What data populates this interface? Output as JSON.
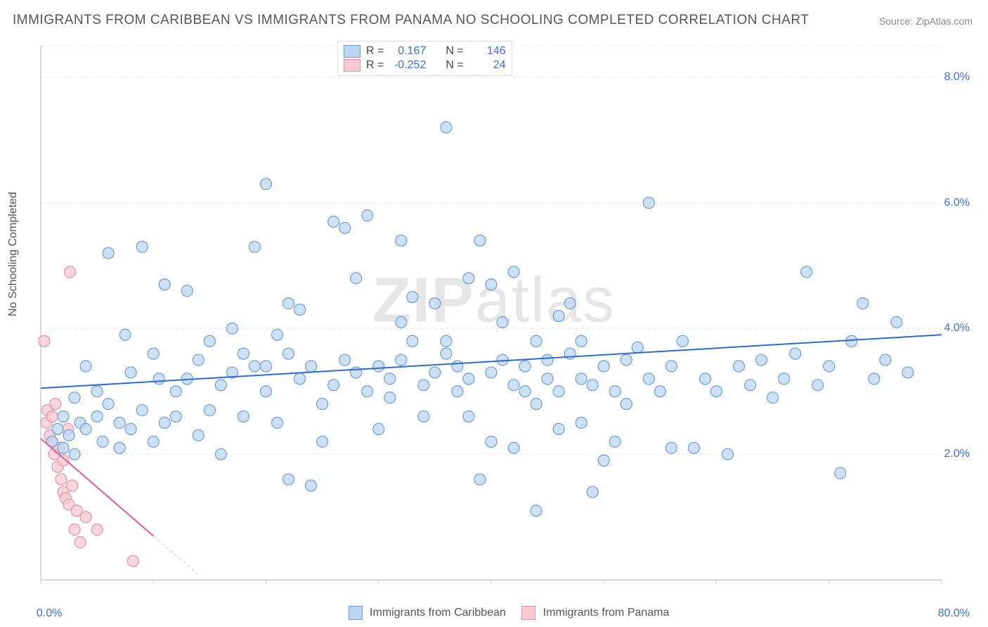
{
  "title": "IMMIGRANTS FROM CARIBBEAN VS IMMIGRANTS FROM PANAMA NO SCHOOLING COMPLETED CORRELATION CHART",
  "source": "Source: ZipAtlas.com",
  "watermark": "ZIPatlas",
  "y_axis_label": "No Schooling Completed",
  "chart": {
    "type": "scatter",
    "xlim": [
      0,
      80
    ],
    "ylim": [
      0,
      8.5
    ],
    "x_ticks": [
      0,
      10,
      20,
      30,
      40,
      50,
      60,
      70,
      80
    ],
    "y_ticks": [
      2,
      4,
      6,
      8
    ],
    "y_tick_labels": [
      "2.0%",
      "4.0%",
      "6.0%",
      "8.0%"
    ],
    "x_min_label": "0.0%",
    "x_max_label": "80.0%",
    "background_color": "#ffffff",
    "grid_color": "#e6e6e6",
    "axis_color": "#cccccc",
    "tick_label_color": "#3a6fd8",
    "marker_radius": 8,
    "marker_stroke_width": 1.2,
    "series": [
      {
        "name": "Immigrants from Caribbean",
        "legend_label": "Immigrants from Caribbean",
        "fill": "#bcd5f0",
        "stroke": "#6a9fd4",
        "fill_opacity": 0.75,
        "R": "0.167",
        "N": "146",
        "trend": {
          "x1": 0,
          "y1": 3.05,
          "x2": 80,
          "y2": 3.9,
          "color": "#2b6cd4",
          "width": 2
        },
        "points": [
          [
            1,
            2.2
          ],
          [
            1.5,
            2.4
          ],
          [
            2,
            2.1
          ],
          [
            2,
            2.6
          ],
          [
            2.5,
            2.3
          ],
          [
            3,
            2.9
          ],
          [
            3,
            2.0
          ],
          [
            3.5,
            2.5
          ],
          [
            4,
            2.4
          ],
          [
            4,
            3.4
          ],
          [
            5,
            2.6
          ],
          [
            5,
            3.0
          ],
          [
            5.5,
            2.2
          ],
          [
            6,
            2.8
          ],
          [
            6,
            5.2
          ],
          [
            7,
            2.5
          ],
          [
            7,
            2.1
          ],
          [
            7.5,
            3.9
          ],
          [
            8,
            3.3
          ],
          [
            8,
            2.4
          ],
          [
            9,
            2.7
          ],
          [
            9,
            5.3
          ],
          [
            10,
            3.6
          ],
          [
            10,
            2.2
          ],
          [
            10.5,
            3.2
          ],
          [
            11,
            2.5
          ],
          [
            11,
            4.7
          ],
          [
            12,
            3.0
          ],
          [
            12,
            2.6
          ],
          [
            13,
            3.2
          ],
          [
            13,
            4.6
          ],
          [
            14,
            2.3
          ],
          [
            14,
            3.5
          ],
          [
            15,
            3.8
          ],
          [
            15,
            2.7
          ],
          [
            16,
            3.1
          ],
          [
            16,
            2.0
          ],
          [
            17,
            4.0
          ],
          [
            17,
            3.3
          ],
          [
            18,
            2.6
          ],
          [
            18,
            3.6
          ],
          [
            19,
            3.4
          ],
          [
            19,
            5.3
          ],
          [
            20,
            6.3
          ],
          [
            20,
            3.0
          ],
          [
            21,
            2.5
          ],
          [
            21,
            3.9
          ],
          [
            22,
            3.6
          ],
          [
            22,
            1.6
          ],
          [
            23,
            3.2
          ],
          [
            23,
            4.3
          ],
          [
            24,
            1.5
          ],
          [
            24,
            3.4
          ],
          [
            25,
            2.8
          ],
          [
            25,
            2.2
          ],
          [
            26,
            3.1
          ],
          [
            26,
            5.7
          ],
          [
            27,
            3.5
          ],
          [
            27,
            5.6
          ],
          [
            28,
            3.3
          ],
          [
            28,
            4.8
          ],
          [
            29,
            3.0
          ],
          [
            29,
            5.8
          ],
          [
            30,
            3.4
          ],
          [
            30,
            2.4
          ],
          [
            31,
            2.9
          ],
          [
            31,
            3.2
          ],
          [
            32,
            3.5
          ],
          [
            32,
            5.4
          ],
          [
            33,
            3.8
          ],
          [
            33,
            4.5
          ],
          [
            34,
            2.6
          ],
          [
            34,
            3.1
          ],
          [
            35,
            3.3
          ],
          [
            35,
            4.4
          ],
          [
            36,
            3.6
          ],
          [
            36,
            7.2
          ],
          [
            37,
            3.0
          ],
          [
            37,
            3.4
          ],
          [
            38,
            3.2
          ],
          [
            38,
            4.8
          ],
          [
            39,
            5.4
          ],
          [
            39,
            1.6
          ],
          [
            40,
            3.3
          ],
          [
            40,
            2.2
          ],
          [
            41,
            3.5
          ],
          [
            41,
            4.1
          ],
          [
            42,
            3.1
          ],
          [
            42,
            4.9
          ],
          [
            43,
            3.4
          ],
          [
            43,
            3.0
          ],
          [
            44,
            2.8
          ],
          [
            44,
            1.1
          ],
          [
            45,
            3.5
          ],
          [
            45,
            3.2
          ],
          [
            46,
            3.0
          ],
          [
            46,
            2.4
          ],
          [
            47,
            3.6
          ],
          [
            47,
            4.4
          ],
          [
            48,
            3.2
          ],
          [
            48,
            2.5
          ],
          [
            49,
            3.1
          ],
          [
            49,
            1.4
          ],
          [
            50,
            3.4
          ],
          [
            50,
            1.9
          ],
          [
            51,
            3.0
          ],
          [
            51,
            2.2
          ],
          [
            52,
            3.5
          ],
          [
            52,
            2.8
          ],
          [
            53,
            3.7
          ],
          [
            54,
            3.2
          ],
          [
            54,
            6.0
          ],
          [
            55,
            3.0
          ],
          [
            56,
            3.4
          ],
          [
            56,
            2.1
          ],
          [
            57,
            3.8
          ],
          [
            58,
            2.1
          ],
          [
            59,
            3.2
          ],
          [
            60,
            3.0
          ],
          [
            61,
            2.0
          ],
          [
            62,
            3.4
          ],
          [
            63,
            3.1
          ],
          [
            64,
            3.5
          ],
          [
            65,
            2.9
          ],
          [
            66,
            3.2
          ],
          [
            67,
            3.6
          ],
          [
            68,
            4.9
          ],
          [
            69,
            3.1
          ],
          [
            70,
            3.4
          ],
          [
            71,
            1.7
          ],
          [
            72,
            3.8
          ],
          [
            73,
            4.4
          ],
          [
            74,
            3.2
          ],
          [
            75,
            3.5
          ],
          [
            76,
            4.1
          ],
          [
            77,
            3.3
          ],
          [
            32,
            4.1
          ],
          [
            36,
            3.8
          ],
          [
            38,
            2.6
          ],
          [
            40,
            4.7
          ],
          [
            42,
            2.1
          ],
          [
            44,
            3.8
          ],
          [
            46,
            4.2
          ],
          [
            48,
            3.8
          ],
          [
            20,
            3.4
          ],
          [
            22,
            4.4
          ]
        ]
      },
      {
        "name": "Immigrants from Panama",
        "legend_label": "Immigrants from Panama",
        "fill": "#f7c8d2",
        "stroke": "#e78fa6",
        "fill_opacity": 0.75,
        "R": "-0.252",
        "N": "24",
        "trend": {
          "x1": 0,
          "y1": 2.25,
          "x2": 10,
          "y2": 0.7,
          "extend_x": 14,
          "color": "#e35d87",
          "width": 2
        },
        "points": [
          [
            0.3,
            3.8
          ],
          [
            0.5,
            2.5
          ],
          [
            0.6,
            2.7
          ],
          [
            0.8,
            2.3
          ],
          [
            1.0,
            2.2
          ],
          [
            1.0,
            2.6
          ],
          [
            1.2,
            2.0
          ],
          [
            1.3,
            2.8
          ],
          [
            1.5,
            1.8
          ],
          [
            1.6,
            2.1
          ],
          [
            1.8,
            1.6
          ],
          [
            2.0,
            1.4
          ],
          [
            2.0,
            1.9
          ],
          [
            2.2,
            1.3
          ],
          [
            2.4,
            2.4
          ],
          [
            2.5,
            1.2
          ],
          [
            2.6,
            4.9
          ],
          [
            2.8,
            1.5
          ],
          [
            3.0,
            0.8
          ],
          [
            3.2,
            1.1
          ],
          [
            3.5,
            0.6
          ],
          [
            4.0,
            1.0
          ],
          [
            5.0,
            0.8
          ],
          [
            8.2,
            0.3
          ]
        ]
      }
    ]
  },
  "bottom_legend": {
    "series1": "Immigrants from Caribbean",
    "series2": "Immigrants from Panama"
  },
  "stats_legend": {
    "r_prefix": "R =",
    "n_prefix": "N ="
  }
}
